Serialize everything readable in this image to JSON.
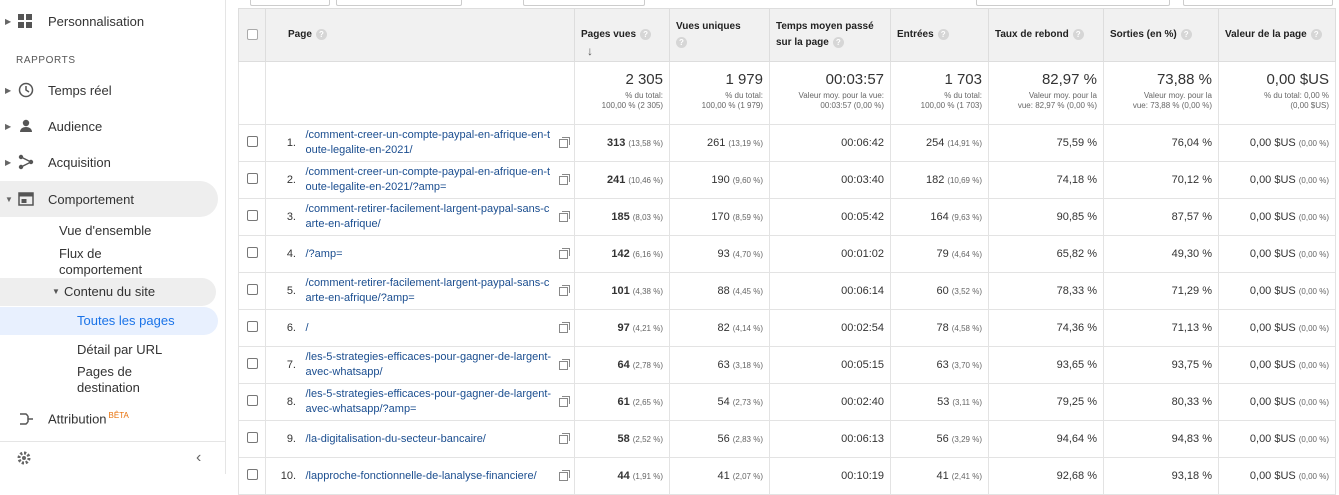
{
  "sidebar": {
    "personnalisation": "Personnalisation",
    "section_title": "RAPPORTS",
    "temps_reel": "Temps réel",
    "audience": "Audience",
    "acquisition": "Acquisition",
    "comportement": "Comportement",
    "vue_ensemble": "Vue d'ensemble",
    "flux_line1": "Flux de",
    "flux_line2": "comportement",
    "contenu_site": "Contenu du site",
    "toutes_pages": "Toutes les pages",
    "detail_url": "Détail par URL",
    "pages_dest_line1": "Pages de",
    "pages_dest_line2": "destination",
    "attribution": "Attribution",
    "beta": "BÊTA"
  },
  "table": {
    "headers": {
      "page": "Page",
      "pages_vues": "Pages vues",
      "vues_uniques": "Vues uniques",
      "temps_line1": "Temps moyen passé",
      "temps_line2": "sur la page",
      "entrees": "Entrées",
      "rebond": "Taux de rebond",
      "sorties": "Sorties (en %)",
      "valeur": "Valeur de la page"
    },
    "totals": {
      "pages_vues": "2 305",
      "pages_vues_sub1": "% du total:",
      "pages_vues_sub2": "100,00 % (2 305)",
      "vues_uniques": "1 979",
      "vues_uniques_sub1": "% du total:",
      "vues_uniques_sub2": "100,00 % (1 979)",
      "temps": "00:03:57",
      "temps_sub1": "Valeur moy. pour la vue:",
      "temps_sub2": "00:03:57 (0,00 %)",
      "entrees": "1 703",
      "entrees_sub1": "% du total:",
      "entrees_sub2": "100,00 % (1 703)",
      "rebond": "82,97 %",
      "rebond_sub1": "Valeur moy. pour la",
      "rebond_sub2": "vue: 82,97 % (0,00 %)",
      "sorties": "73,88 %",
      "sorties_sub1": "Valeur moy. pour la",
      "sorties_sub2": "vue: 73,88 % (0,00 %)",
      "valeur": "0,00 $US",
      "valeur_sub1": "% du total: 0,00 %",
      "valeur_sub2": "(0,00 $US)"
    },
    "rows": [
      {
        "idx": "1.",
        "page": "/comment-creer-un-compte-paypal-en-afrique-en-toute-legalite-en-2021/",
        "pv": "313",
        "pv_pct": "(13,58 %)",
        "vu": "261",
        "vu_pct": "(13,19 %)",
        "temps": "00:06:42",
        "ent": "254",
        "ent_pct": "(14,91 %)",
        "rebond": "75,59 %",
        "sorties": "76,04 %",
        "valeur": "0,00 $US",
        "valeur_pct": "(0,00 %)"
      },
      {
        "idx": "2.",
        "page": "/comment-creer-un-compte-paypal-en-afrique-en-toute-legalite-en-2021/?amp=",
        "pv": "241",
        "pv_pct": "(10,46 %)",
        "vu": "190",
        "vu_pct": "(9,60 %)",
        "temps": "00:03:40",
        "ent": "182",
        "ent_pct": "(10,69 %)",
        "rebond": "74,18 %",
        "sorties": "70,12 %",
        "valeur": "0,00 $US",
        "valeur_pct": "(0,00 %)"
      },
      {
        "idx": "3.",
        "page": "/comment-retirer-facilement-largent-paypal-sans-carte-en-afrique/",
        "pv": "185",
        "pv_pct": "(8,03 %)",
        "vu": "170",
        "vu_pct": "(8,59 %)",
        "temps": "00:05:42",
        "ent": "164",
        "ent_pct": "(9,63 %)",
        "rebond": "90,85 %",
        "sorties": "87,57 %",
        "valeur": "0,00 $US",
        "valeur_pct": "(0,00 %)"
      },
      {
        "idx": "4.",
        "page": "/?amp=",
        "pv": "142",
        "pv_pct": "(6,16 %)",
        "vu": "93",
        "vu_pct": "(4,70 %)",
        "temps": "00:01:02",
        "ent": "79",
        "ent_pct": "(4,64 %)",
        "rebond": "65,82 %",
        "sorties": "49,30 %",
        "valeur": "0,00 $US",
        "valeur_pct": "(0,00 %)"
      },
      {
        "idx": "5.",
        "page": "/comment-retirer-facilement-largent-paypal-sans-carte-en-afrique/?amp=",
        "pv": "101",
        "pv_pct": "(4,38 %)",
        "vu": "88",
        "vu_pct": "(4,45 %)",
        "temps": "00:06:14",
        "ent": "60",
        "ent_pct": "(3,52 %)",
        "rebond": "78,33 %",
        "sorties": "71,29 %",
        "valeur": "0,00 $US",
        "valeur_pct": "(0,00 %)"
      },
      {
        "idx": "6.",
        "page": "/",
        "pv": "97",
        "pv_pct": "(4,21 %)",
        "vu": "82",
        "vu_pct": "(4,14 %)",
        "temps": "00:02:54",
        "ent": "78",
        "ent_pct": "(4,58 %)",
        "rebond": "74,36 %",
        "sorties": "71,13 %",
        "valeur": "0,00 $US",
        "valeur_pct": "(0,00 %)"
      },
      {
        "idx": "7.",
        "page": "/les-5-strategies-efficaces-pour-gagner-de-largent-avec-whatsapp/",
        "pv": "64",
        "pv_pct": "(2,78 %)",
        "vu": "63",
        "vu_pct": "(3,18 %)",
        "temps": "00:05:15",
        "ent": "63",
        "ent_pct": "(3,70 %)",
        "rebond": "93,65 %",
        "sorties": "93,75 %",
        "valeur": "0,00 $US",
        "valeur_pct": "(0,00 %)"
      },
      {
        "idx": "8.",
        "page": "/les-5-strategies-efficaces-pour-gagner-de-largent-avec-whatsapp/?amp=",
        "pv": "61",
        "pv_pct": "(2,65 %)",
        "vu": "54",
        "vu_pct": "(2,73 %)",
        "temps": "00:02:40",
        "ent": "53",
        "ent_pct": "(3,11 %)",
        "rebond": "79,25 %",
        "sorties": "80,33 %",
        "valeur": "0,00 $US",
        "valeur_pct": "(0,00 %)"
      },
      {
        "idx": "9.",
        "page": "/la-digitalisation-du-secteur-bancaire/",
        "pv": "58",
        "pv_pct": "(2,52 %)",
        "vu": "56",
        "vu_pct": "(2,83 %)",
        "temps": "00:06:13",
        "ent": "56",
        "ent_pct": "(3,29 %)",
        "rebond": "94,64 %",
        "sorties": "94,83 %",
        "valeur": "0,00 $US",
        "valeur_pct": "(0,00 %)"
      },
      {
        "idx": "10.",
        "page": "/lapproche-fonctionnelle-de-lanalyse-financiere/",
        "pv": "44",
        "pv_pct": "(1,91 %)",
        "vu": "41",
        "vu_pct": "(2,07 %)",
        "temps": "00:10:19",
        "ent": "41",
        "ent_pct": "(2,41 %)",
        "rebond": "92,68 %",
        "sorties": "93,18 %",
        "valeur": "0,00 $US",
        "valeur_pct": "(0,00 %)"
      }
    ]
  }
}
